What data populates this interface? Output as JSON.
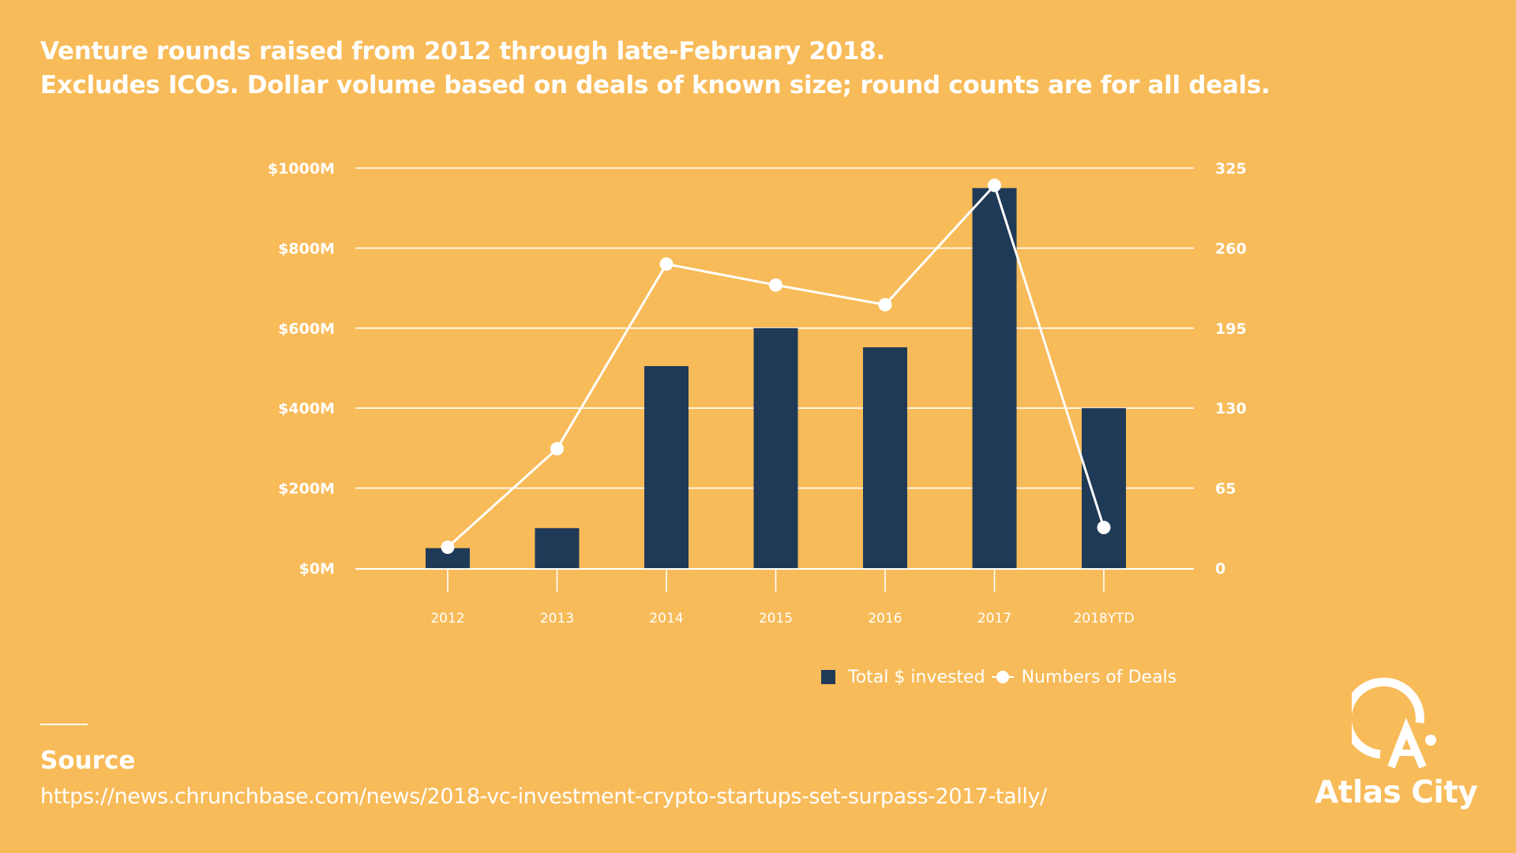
{
  "title": {
    "line1": "Venture rounds raised from 2012 through late-February 2018.",
    "line2": "Excludes ICOs. Dollar volume based on deals of known size; round counts are for all deals."
  },
  "colors": {
    "background": "#F8BB59",
    "bar": "#1F3A56",
    "line": "#FFFFFF",
    "text": "#FFFFFF"
  },
  "chart_data": {
    "type": "bar",
    "categories": [
      "2012",
      "2013",
      "2014",
      "2015",
      "2016",
      "2017",
      "2018YTD"
    ],
    "series": [
      {
        "name": "Total $ invested",
        "type": "bar",
        "axis": "left",
        "values": [
          50,
          100,
          505,
          600,
          552,
          950,
          400
        ]
      },
      {
        "name": "Numbers of Deals",
        "type": "line",
        "axis": "right",
        "values": [
          17,
          97,
          247,
          230,
          214,
          311,
          33
        ]
      }
    ],
    "y_left": {
      "ylim": [
        0,
        1000
      ],
      "ticks": [
        0,
        200,
        400,
        600,
        800,
        1000
      ],
      "tick_labels": [
        "$0M",
        "$200M",
        "$400M",
        "$600M",
        "$800M",
        "$1000M"
      ]
    },
    "y_right": {
      "ylim": [
        0,
        325
      ],
      "ticks": [
        0,
        65,
        130,
        195,
        260,
        325
      ],
      "tick_labels": [
        "0",
        "65",
        "130",
        "195",
        "260",
        "325"
      ]
    },
    "grid": true,
    "legend_position": "bottom-right"
  },
  "legend": {
    "bar_label": "Total $ invested",
    "line_label": "Numbers of Deals"
  },
  "source": {
    "heading": "Source",
    "url": "https://news.chrunchbase.com/news/2018-vc-investment-crypto-startups-set-surpass-2017-tally/"
  },
  "logo": {
    "text": "Atlas City",
    "icon": "atlas-city-logo-icon"
  }
}
